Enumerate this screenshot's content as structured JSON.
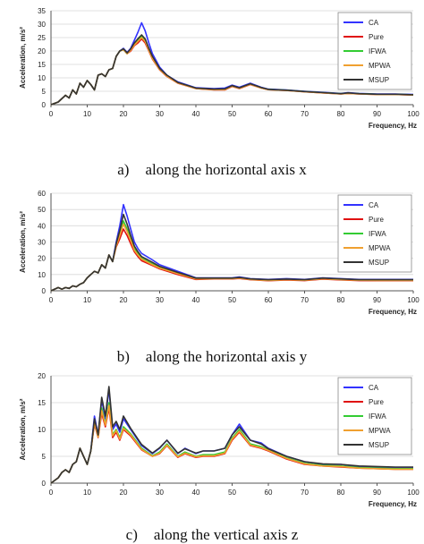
{
  "chart_data": [
    {
      "type": "line",
      "ylabel": "Acceleration, m/s²",
      "xlabel": "Frequency, Hz",
      "xlim": [
        0,
        100
      ],
      "ylim": [
        0,
        35
      ],
      "xticks": [
        0,
        10,
        20,
        30,
        40,
        50,
        60,
        70,
        80,
        90,
        100
      ],
      "yticks": [
        0,
        5,
        10,
        15,
        20,
        25,
        30,
        35
      ],
      "legend_position": "top-right",
      "caption_label": "a)",
      "caption_text": "along the horizontal axis x",
      "x": [
        0,
        2,
        4,
        5,
        6,
        7,
        8,
        9,
        10,
        11,
        12,
        13,
        14,
        15,
        16,
        17,
        18,
        19,
        20,
        21,
        22,
        23,
        24,
        25,
        26,
        27,
        28,
        30,
        32,
        35,
        40,
        45,
        48,
        50,
        52,
        55,
        58,
        60,
        65,
        70,
        75,
        80,
        82,
        85,
        90,
        95,
        100
      ],
      "series": [
        {
          "name": "CA",
          "color": "#3333ff",
          "values": [
            0,
            1,
            3.5,
            2.5,
            5.5,
            4,
            8,
            6.5,
            9,
            7.5,
            5.5,
            11,
            11.5,
            10.5,
            13,
            13.5,
            18,
            20,
            21,
            19.5,
            21,
            24,
            27,
            30.5,
            27.5,
            23,
            19,
            14,
            11,
            8.5,
            6.3,
            6,
            6.2,
            7.3,
            6.5,
            8,
            6.5,
            5.8,
            5.5,
            5,
            4.6,
            4.2,
            4.5,
            4.2,
            4,
            4,
            3.8
          ]
        },
        {
          "name": "Pure",
          "color": "#e01010",
          "values": [
            0,
            1,
            3.5,
            2.5,
            5.5,
            4,
            8,
            6.5,
            9,
            7.5,
            5.5,
            11,
            11.5,
            10.5,
            13,
            13.5,
            18,
            20,
            20.5,
            19,
            20,
            22,
            23,
            24.5,
            23,
            20,
            17,
            13,
            10.5,
            8,
            6,
            5.5,
            5.5,
            6.8,
            6,
            7.5,
            6.2,
            5.6,
            5.3,
            4.8,
            4.4,
            4,
            4.2,
            4,
            3.8,
            3.8,
            3.6
          ]
        },
        {
          "name": "IFWA",
          "color": "#33cc33",
          "values": [
            0,
            1,
            3.5,
            2.5,
            5.5,
            4,
            8,
            6.5,
            9,
            7.5,
            5.5,
            11,
            11.5,
            10.5,
            13,
            13.5,
            18,
            20,
            20.5,
            19,
            20.5,
            22.5,
            24,
            25.5,
            24,
            20.5,
            17.5,
            13.3,
            10.8,
            8.2,
            6.1,
            5.7,
            5.8,
            7,
            6.2,
            7.7,
            6.3,
            5.7,
            5.4,
            4.9,
            4.5,
            4.1,
            4.3,
            4.1,
            3.9,
            3.9,
            3.7
          ]
        },
        {
          "name": "MPWA",
          "color": "#f0a030",
          "values": [
            0,
            1,
            3.5,
            2.5,
            5.5,
            4,
            8,
            6.5,
            9,
            7.5,
            5.5,
            11,
            11.5,
            10.5,
            13,
            13.5,
            18,
            20,
            20.5,
            19,
            20.3,
            22.2,
            23.6,
            25,
            23.5,
            20.2,
            17.2,
            13.1,
            10.6,
            8.1,
            6,
            5.6,
            5.6,
            6.9,
            6.1,
            7.6,
            6.2,
            5.6,
            5.3,
            4.8,
            4.4,
            4,
            4.2,
            4,
            3.8,
            3.8,
            3.6
          ]
        },
        {
          "name": "MSUP",
          "color": "#333333",
          "values": [
            0,
            1,
            3.5,
            2.5,
            5.5,
            4,
            8,
            6.5,
            9,
            7.5,
            5.5,
            11,
            11.5,
            10.5,
            13,
            13.5,
            18,
            20,
            20.8,
            19.3,
            20.8,
            23,
            24.6,
            26,
            24.5,
            21,
            18,
            13.5,
            11,
            8.3,
            6.2,
            5.8,
            5.9,
            7.1,
            6.3,
            7.8,
            6.4,
            5.7,
            5.4,
            4.9,
            4.5,
            4.1,
            4.4,
            4.1,
            3.9,
            3.9,
            3.7
          ]
        }
      ]
    },
    {
      "type": "line",
      "ylabel": "Acceleration, m/s²",
      "xlabel": "Frequency, Hz",
      "xlim": [
        0,
        100
      ],
      "ylim": [
        0,
        60
      ],
      "xticks": [
        0,
        10,
        20,
        30,
        40,
        50,
        60,
        70,
        80,
        90,
        100
      ],
      "yticks": [
        0,
        10,
        20,
        30,
        40,
        50,
        60
      ],
      "legend_position": "top-right",
      "caption_label": "b)",
      "caption_text": "along the horizontal axis y",
      "x": [
        0,
        2,
        3,
        4,
        5,
        6,
        7,
        8,
        9,
        10,
        11,
        12,
        13,
        14,
        15,
        16,
        17,
        18,
        19,
        20,
        21,
        22,
        23,
        24,
        25,
        28,
        30,
        35,
        40,
        45,
        50,
        52,
        55,
        60,
        65,
        70,
        75,
        80,
        85,
        90,
        95,
        100
      ],
      "series": [
        {
          "name": "CA",
          "color": "#3333ff",
          "values": [
            0,
            2,
            1,
            2,
            1.5,
            3,
            2.5,
            4,
            5,
            8,
            10,
            12,
            11,
            16,
            14,
            22,
            18,
            30,
            40,
            53,
            46,
            38,
            30,
            26,
            23,
            19,
            16,
            12,
            8,
            8,
            8,
            8.5,
            7.5,
            7,
            7.5,
            7,
            8,
            7.5,
            7,
            7,
            7,
            7
          ]
        },
        {
          "name": "Pure",
          "color": "#e01010",
          "values": [
            0,
            2,
            1,
            2,
            1.5,
            3,
            2.5,
            4,
            5,
            8,
            10,
            12,
            11,
            16,
            14,
            22,
            18,
            27,
            32,
            38,
            34,
            29,
            24,
            21,
            18.5,
            15.5,
            13.5,
            10,
            7,
            7.3,
            7.3,
            7.6,
            6.8,
            6.2,
            6.6,
            6.3,
            7.2,
            6.7,
            6.3,
            6.2,
            6.2,
            6.2
          ]
        },
        {
          "name": "IFWA",
          "color": "#33cc33",
          "values": [
            0,
            2,
            1,
            2,
            1.5,
            3,
            2.5,
            4,
            5,
            8,
            10,
            12,
            11,
            16,
            14,
            22,
            18,
            28,
            35,
            43,
            38,
            32,
            26,
            23,
            20,
            16.5,
            14.5,
            10.8,
            7.5,
            7.6,
            7.6,
            8,
            7.1,
            6.5,
            6.9,
            6.6,
            7.5,
            7,
            6.6,
            6.5,
            6.5,
            6.5
          ]
        },
        {
          "name": "MPWA",
          "color": "#f0a030",
          "values": [
            0,
            2,
            1,
            2,
            1.5,
            3,
            2.5,
            4,
            5,
            8,
            10,
            12,
            11,
            16,
            14,
            22,
            18,
            27.5,
            34,
            41,
            36.5,
            31,
            25,
            22,
            19.5,
            16,
            14,
            10.5,
            7.3,
            7.5,
            7.5,
            7.8,
            7,
            6.4,
            6.8,
            6.5,
            7.4,
            6.9,
            6.5,
            6.4,
            6.4,
            6.4
          ]
        },
        {
          "name": "MSUP",
          "color": "#333333",
          "values": [
            0,
            2,
            1,
            2,
            1.5,
            3,
            2.5,
            4,
            5,
            8,
            10,
            12,
            11,
            16,
            14,
            22,
            18,
            29,
            37,
            47,
            41,
            34,
            27.5,
            24,
            21,
            17.5,
            15,
            11.3,
            7.8,
            7.8,
            7.8,
            8.2,
            7.3,
            6.8,
            7.2,
            6.8,
            7.8,
            7.3,
            6.8,
            6.8,
            6.8,
            6.8
          ]
        }
      ]
    },
    {
      "type": "line",
      "ylabel": "Acceleration, m/s²",
      "xlabel": "Frequency, Hz",
      "xlim": [
        0,
        100
      ],
      "ylim": [
        0,
        20
      ],
      "xticks": [
        0,
        10,
        20,
        30,
        40,
        50,
        60,
        70,
        80,
        90,
        100
      ],
      "yticks": [
        0,
        5,
        10,
        15,
        20
      ],
      "legend_position": "top-right",
      "caption_label": "c)",
      "caption_text": "along the vertical axis z",
      "x": [
        0,
        2,
        3,
        4,
        5,
        6,
        7,
        8,
        9,
        10,
        11,
        12,
        13,
        14,
        15,
        16,
        17,
        18,
        19,
        20,
        22,
        25,
        28,
        30,
        32,
        35,
        37,
        40,
        42,
        45,
        48,
        50,
        52,
        55,
        58,
        60,
        65,
        70,
        75,
        80,
        85,
        90,
        95,
        100
      ],
      "series": [
        {
          "name": "CA",
          "color": "#3333ff",
          "values": [
            0,
            1,
            2,
            2.5,
            2,
            3.5,
            4,
            6.5,
            5,
            3.5,
            6,
            12.5,
            9,
            15.5,
            12,
            17.5,
            10,
            11,
            9.5,
            12,
            10,
            7,
            5.5,
            6.5,
            8,
            5.5,
            6.5,
            5.5,
            6,
            6,
            6.5,
            9,
            11,
            8,
            7.5,
            6.5,
            5,
            4,
            3.5,
            3.5,
            3,
            3,
            2.8,
            2.8
          ]
        },
        {
          "name": "Pure",
          "color": "#e01010",
          "values": [
            0,
            1,
            2,
            2.5,
            2,
            3.5,
            4,
            6.5,
            5,
            3.5,
            6,
            11,
            8.5,
            13,
            10.5,
            14,
            8.5,
            9.5,
            8,
            10,
            8.8,
            6.2,
            5,
            5.5,
            7,
            4.8,
            5.5,
            4.8,
            5,
            5,
            5.5,
            8,
            9.5,
            7,
            6.5,
            6,
            4.5,
            3.5,
            3.2,
            3,
            2.8,
            2.7,
            2.6,
            2.6
          ]
        },
        {
          "name": "IFWA",
          "color": "#33cc33",
          "values": [
            0,
            1,
            2,
            2.5,
            2,
            3.5,
            4,
            6.5,
            5,
            3.5,
            6,
            11.5,
            8.7,
            14,
            11,
            15,
            9,
            10,
            8.5,
            10.5,
            9.2,
            6.5,
            5.1,
            5.8,
            7.3,
            5,
            5.8,
            5,
            5.3,
            5.3,
            5.8,
            8.4,
            10,
            7.3,
            6.8,
            6.2,
            4.7,
            3.7,
            3.3,
            3.2,
            2.9,
            2.8,
            2.7,
            2.7
          ]
        },
        {
          "name": "MPWA",
          "color": "#f0a030",
          "values": [
            0,
            1,
            2,
            2.5,
            2,
            3.5,
            4,
            6.5,
            5,
            3.5,
            6,
            11.2,
            8.6,
            13.5,
            10.8,
            14.5,
            8.8,
            9.8,
            8.2,
            10.2,
            9,
            6.3,
            5,
            5.6,
            7.1,
            4.9,
            5.6,
            4.9,
            5.1,
            5.1,
            5.6,
            8.2,
            9.7,
            7.1,
            6.6,
            6.1,
            4.6,
            3.6,
            3.2,
            3.1,
            2.8,
            2.7,
            2.6,
            2.6
          ]
        },
        {
          "name": "MSUP",
          "color": "#333333",
          "values": [
            0,
            1,
            2,
            2.5,
            2,
            3.5,
            4,
            6.5,
            5,
            3.5,
            6,
            12,
            9,
            16,
            12.5,
            18,
            10.5,
            11.5,
            10,
            12.5,
            10.2,
            7.2,
            5.6,
            6.6,
            8,
            5.6,
            6.4,
            5.6,
            6,
            6,
            6.5,
            9,
            10.5,
            8,
            7.3,
            6.4,
            5,
            4,
            3.6,
            3.5,
            3.2,
            3.1,
            3,
            3
          ]
        }
      ]
    }
  ]
}
